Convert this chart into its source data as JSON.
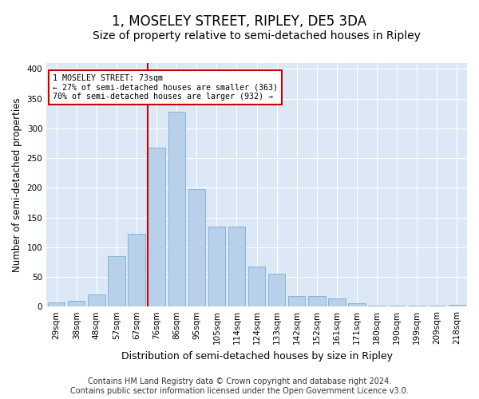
{
  "title": "1, MOSELEY STREET, RIPLEY, DE5 3DA",
  "subtitle": "Size of property relative to semi-detached houses in Ripley",
  "xlabel": "Distribution of semi-detached houses by size in Ripley",
  "ylabel": "Number of semi-detached properties",
  "categories": [
    "29sqm",
    "38sqm",
    "48sqm",
    "57sqm",
    "67sqm",
    "76sqm",
    "86sqm",
    "95sqm",
    "105sqm",
    "114sqm",
    "124sqm",
    "133sqm",
    "142sqm",
    "152sqm",
    "161sqm",
    "171sqm",
    "180sqm",
    "190sqm",
    "199sqm",
    "209sqm",
    "218sqm"
  ],
  "values": [
    7,
    10,
    20,
    85,
    123,
    268,
    328,
    198,
    135,
    135,
    68,
    55,
    18,
    18,
    14,
    6,
    2,
    1,
    2,
    2,
    3
  ],
  "bar_color": "#b8d0ea",
  "bar_edge_color": "#7aaed4",
  "marker_index": 5,
  "marker_label": "1 MOSELEY STREET: 73sqm",
  "marker_line_color": "#cc0000",
  "annotation_smaller": "← 27% of semi-detached houses are smaller (363)",
  "annotation_larger": "70% of semi-detached houses are larger (932) →",
  "annotation_box_color": "#cc0000",
  "footer_line1": "Contains HM Land Registry data © Crown copyright and database right 2024.",
  "footer_line2": "Contains public sector information licensed under the Open Government Licence v3.0.",
  "ylim": [
    0,
    410
  ],
  "fig_bg_color": "#ffffff",
  "plot_bg_color": "#dce8f5",
  "title_fontsize": 12,
  "subtitle_fontsize": 10,
  "axis_label_fontsize": 8.5,
  "tick_fontsize": 7.5,
  "footer_fontsize": 7
}
